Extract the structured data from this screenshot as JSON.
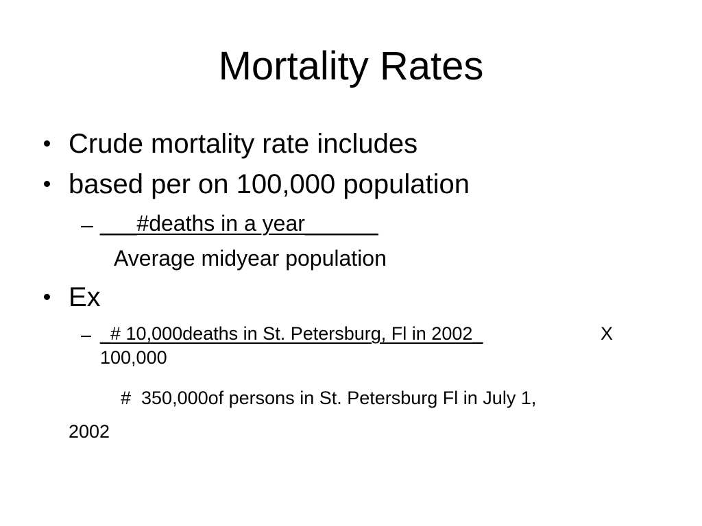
{
  "slide": {
    "title": "Mortality Rates",
    "bullets": {
      "b1": "Crude mortality rate includes",
      "b2": "based per on 100,000 population",
      "b2_sub_dash": "–",
      "b2_sub_numerator": "___#deaths in a year______",
      "b2_sub_denominator": "Average midyear population",
      "b3": "Ex",
      "b3_sub_dash": "–",
      "b3_sub_numerator": "_# 10,000deaths in St. Petersburg, Fl in 2002_",
      "b3_sub_multiplier": "X",
      "b3_sub_line2": "100,000",
      "b3_denominator": "#  350,000of persons in St. Petersburg Fl in July 1,",
      "b3_denominator_cont": "2002"
    }
  }
}
